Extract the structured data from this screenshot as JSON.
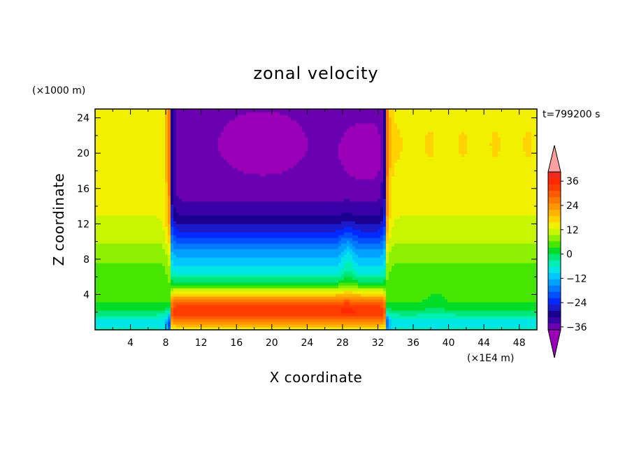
{
  "chart_data": {
    "type": "heatmap",
    "title": "zonal velocity",
    "xlabel": "X coordinate",
    "ylabel": "Z coordinate",
    "x_unit": "(×1E4 m)",
    "y_unit": "(×1000 m)",
    "time_label": "t=799200 s",
    "xlim": [
      0,
      50
    ],
    "ylim": [
      0,
      25
    ],
    "x_ticks": [
      4,
      8,
      12,
      16,
      20,
      24,
      28,
      32,
      36,
      40,
      44,
      48
    ],
    "y_ticks": [
      4,
      8,
      12,
      16,
      20,
      24
    ],
    "colorbar_labels": [
      36,
      24,
      12,
      0,
      -12,
      -24,
      -36
    ],
    "levels": [
      -42,
      -39,
      -36,
      -33,
      -30,
      -27,
      -24,
      -21,
      -18,
      -15,
      -12,
      -9,
      -6,
      -3,
      0,
      3,
      6,
      9,
      12,
      15,
      18,
      21,
      24,
      27,
      30,
      33,
      36,
      39,
      42
    ],
    "colors": [
      "#9a00b8",
      "#6a00b0",
      "#3a00a8",
      "#1a0090",
      "#1a1ac8",
      "#0028ff",
      "#0050ff",
      "#0078ff",
      "#00a0ff",
      "#00c8ff",
      "#00e6e6",
      "#00f0b4",
      "#00e678",
      "#00dc28",
      "#46e600",
      "#8cf000",
      "#c8f500",
      "#f0f000",
      "#ffd200",
      "#ffb400",
      "#ff9600",
      "#ff7800",
      "#ff5a00",
      "#ff3c00",
      "#ff2800",
      "#f0281e",
      "#ffa0a0"
    ]
  }
}
